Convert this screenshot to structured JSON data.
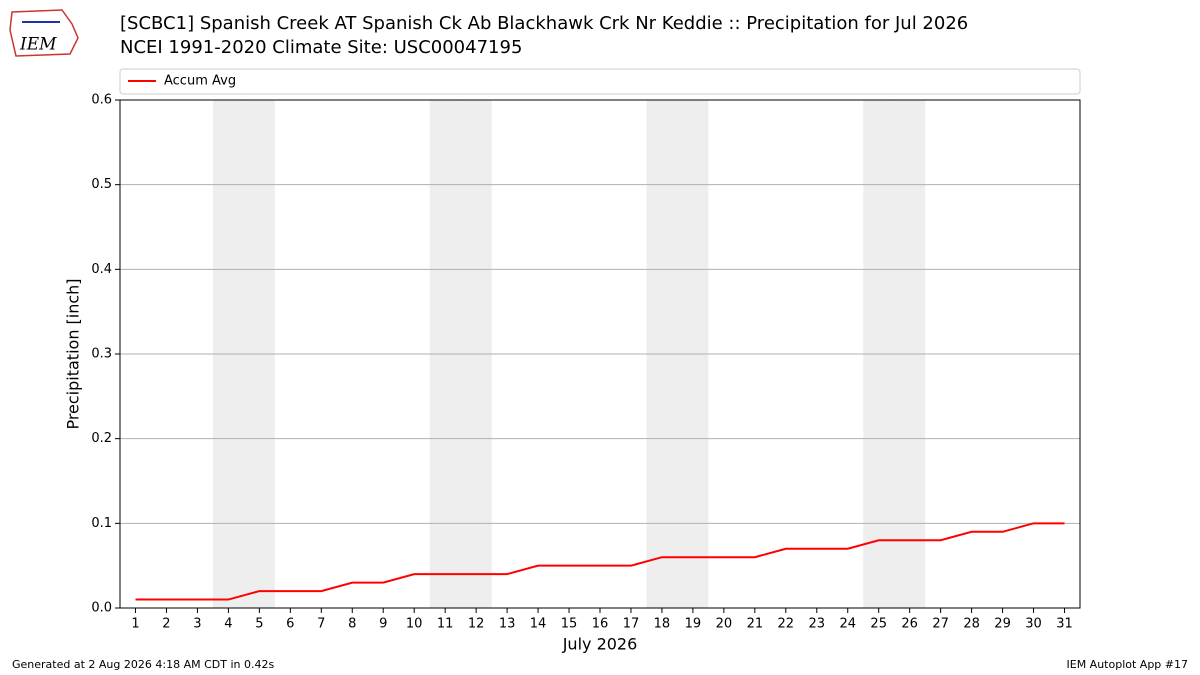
{
  "logo": "IEM",
  "footer": {
    "left": "Generated at 2 Aug 2026 4:18 AM CDT in 0.42s",
    "right": "IEM Autoplot App #17"
  },
  "chart_data": {
    "type": "line",
    "title": "[SCBC1] Spanish Creek  AT Spanish Ck Ab Blackhawk Crk Nr Keddie :: Precipitation for Jul 2026",
    "subtitle": "NCEI 1991-2020 Climate Site: USC00047195",
    "x_label": "July 2026",
    "y_label": "Precipitation [inch]",
    "x": [
      1,
      2,
      3,
      4,
      5,
      6,
      7,
      8,
      9,
      10,
      11,
      12,
      13,
      14,
      15,
      16,
      17,
      18,
      19,
      20,
      21,
      22,
      23,
      24,
      25,
      26,
      27,
      28,
      29,
      30,
      31
    ],
    "series": [
      {
        "name": "Accum Avg",
        "color": "#ff0000",
        "values": [
          0.01,
          0.01,
          0.01,
          0.01,
          0.02,
          0.02,
          0.02,
          0.03,
          0.03,
          0.04,
          0.04,
          0.04,
          0.04,
          0.05,
          0.05,
          0.05,
          0.05,
          0.06,
          0.06,
          0.06,
          0.06,
          0.07,
          0.07,
          0.07,
          0.08,
          0.08,
          0.08,
          0.09,
          0.09,
          0.1,
          0.1
        ]
      }
    ],
    "xlim": [
      0.5,
      31.5
    ],
    "xticks": [
      1,
      2,
      3,
      4,
      5,
      6,
      7,
      8,
      9,
      10,
      11,
      12,
      13,
      14,
      15,
      16,
      17,
      18,
      19,
      20,
      21,
      22,
      23,
      24,
      25,
      26,
      27,
      28,
      29,
      30,
      31
    ],
    "ylim": [
      0,
      0.6
    ],
    "yticks": [
      {
        "value": 0,
        "label": "0.0"
      },
      0.1,
      0.2,
      0.3,
      0.4,
      0.5,
      0.6
    ],
    "grid": true,
    "legend": "top",
    "highlight_days": [
      4,
      5,
      11,
      12,
      18,
      19,
      25,
      26
    ],
    "highlight_color": "#eeeeee"
  }
}
